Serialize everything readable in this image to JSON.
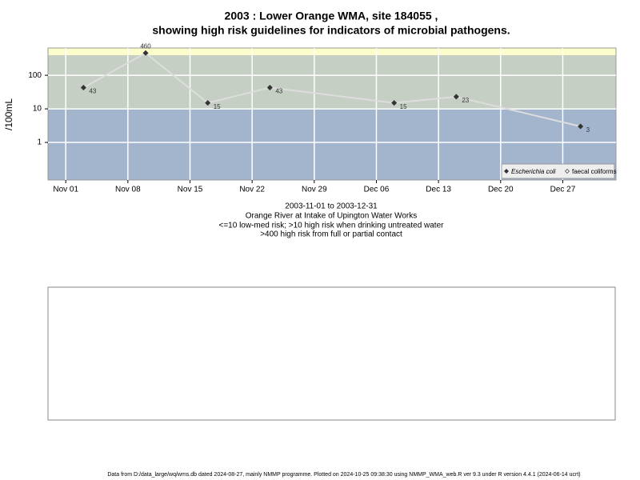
{
  "chart_data": {
    "type": "line",
    "title": "2003 : Lower Orange WMA, site 184055 ,",
    "title2": "showing high risk guidelines for indicators of microbial pathogens.",
    "subtitle": [
      "2003-11-01 to 2003-12-31",
      "Orange River at Intake of Upington Water Works",
      "<=10 low-med risk; >10 high risk when drinking untreated water",
      ">400 high risk from full or partial contact"
    ],
    "ylabel": "/100mL",
    "log_y": true,
    "grid": true,
    "legend": "bottom-right",
    "thresholds": [
      10,
      400
    ],
    "band_colors": [
      "#a3b4cd",
      "#c5cfc3",
      "#fdfdcb"
    ],
    "x": [
      "2003-11-03",
      "2003-11-10",
      "2003-11-17",
      "2003-11-24",
      "2003-12-08",
      "2003-12-15",
      "2003-12-29"
    ],
    "series": [
      {
        "name": "Escherichia coli",
        "color": "#333333",
        "line_color": "#dddddd",
        "values": [
          43,
          460,
          15,
          43,
          15,
          23,
          3
        ]
      },
      {
        "name": "faecal coliforms",
        "color": "#333333",
        "values": [
          null,
          null,
          null,
          null,
          null,
          null,
          null
        ]
      }
    ],
    "xlim": [
      "2003-10-30",
      "2004-01-02"
    ],
    "xticks": [
      {
        "value": "2003-11-01",
        "label": "Nov 01"
      },
      {
        "value": "2003-11-08",
        "label": "Nov 08"
      },
      {
        "value": "2003-11-15",
        "label": "Nov 15"
      },
      {
        "value": "2003-11-22",
        "label": "Nov 22"
      },
      {
        "value": "2003-11-29",
        "label": "Nov 29"
      },
      {
        "value": "2003-12-06",
        "label": "Dec 06"
      },
      {
        "value": "2003-12-13",
        "label": "Dec 13"
      },
      {
        "value": "2003-12-20",
        "label": "Dec 20"
      },
      {
        "value": "2003-12-27",
        "label": "Dec 27"
      }
    ],
    "ylim": [
      0.076,
      650
    ],
    "yticks": [
      1,
      10,
      100
    ],
    "footer": "Data from D:/data_large/wq/wms.db dated 2024-08-27, mainly NMMP programme. Plotted on 2024-10-25 09:38:30 using NMMP_WMA_web.R ver 9.3 under R version 4.4.1 (2024-06-14 ucrt)"
  }
}
